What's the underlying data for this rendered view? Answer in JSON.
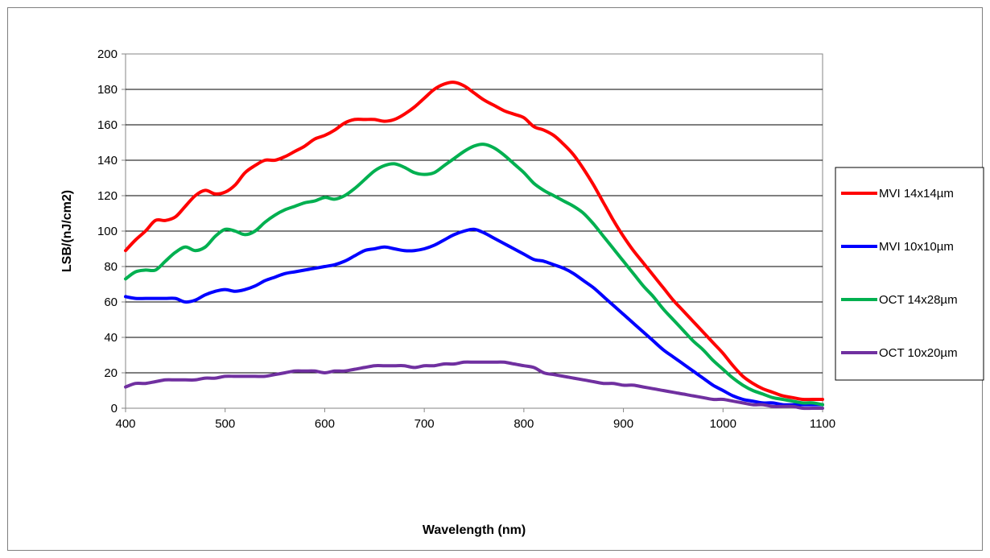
{
  "chart_data": {
    "type": "line",
    "title": "",
    "xlabel": "Wavelength (nm)",
    "ylabel": "LSB/(nJ/cm2)",
    "xlim": [
      400,
      1100
    ],
    "ylim": [
      0,
      200
    ],
    "x_ticks": [
      "400",
      "500",
      "600",
      "700",
      "800",
      "900",
      "1000",
      "1100"
    ],
    "y_ticks": [
      "0",
      "20",
      "40",
      "60",
      "80",
      "100",
      "120",
      "140",
      "160",
      "180",
      "200"
    ],
    "grid": "horizontal",
    "legend_position": "right",
    "series": [
      {
        "name": "MVI 14x14µm",
        "color": "#ff0000",
        "points": [
          [
            400,
            89
          ],
          [
            410,
            95
          ],
          [
            420,
            100
          ],
          [
            430,
            106
          ],
          [
            440,
            106
          ],
          [
            450,
            108
          ],
          [
            460,
            114
          ],
          [
            470,
            120
          ],
          [
            480,
            123
          ],
          [
            490,
            121
          ],
          [
            500,
            122
          ],
          [
            510,
            126
          ],
          [
            520,
            133
          ],
          [
            530,
            137
          ],
          [
            540,
            140
          ],
          [
            550,
            140
          ],
          [
            560,
            142
          ],
          [
            570,
            145
          ],
          [
            580,
            148
          ],
          [
            590,
            152
          ],
          [
            600,
            154
          ],
          [
            610,
            157
          ],
          [
            620,
            161
          ],
          [
            630,
            163
          ],
          [
            640,
            163
          ],
          [
            650,
            163
          ],
          [
            660,
            162
          ],
          [
            670,
            163
          ],
          [
            680,
            166
          ],
          [
            690,
            170
          ],
          [
            700,
            175
          ],
          [
            710,
            180
          ],
          [
            720,
            183
          ],
          [
            730,
            184
          ],
          [
            740,
            182
          ],
          [
            750,
            178
          ],
          [
            760,
            174
          ],
          [
            770,
            171
          ],
          [
            780,
            168
          ],
          [
            790,
            166
          ],
          [
            800,
            164
          ],
          [
            810,
            159
          ],
          [
            820,
            157
          ],
          [
            830,
            154
          ],
          [
            840,
            149
          ],
          [
            850,
            143
          ],
          [
            860,
            135
          ],
          [
            870,
            126
          ],
          [
            880,
            116
          ],
          [
            890,
            106
          ],
          [
            900,
            97
          ],
          [
            910,
            89
          ],
          [
            920,
            82
          ],
          [
            930,
            75
          ],
          [
            940,
            68
          ],
          [
            950,
            61
          ],
          [
            960,
            55
          ],
          [
            970,
            49
          ],
          [
            980,
            43
          ],
          [
            990,
            37
          ],
          [
            1000,
            31
          ],
          [
            1010,
            24
          ],
          [
            1020,
            18
          ],
          [
            1030,
            14
          ],
          [
            1040,
            11
          ],
          [
            1050,
            9
          ],
          [
            1060,
            7
          ],
          [
            1070,
            6
          ],
          [
            1080,
            5
          ],
          [
            1090,
            5
          ],
          [
            1100,
            5
          ]
        ]
      },
      {
        "name": "MVI 10x10µm",
        "color": "#0000ff",
        "points": [
          [
            400,
            63
          ],
          [
            410,
            62
          ],
          [
            420,
            62
          ],
          [
            430,
            62
          ],
          [
            440,
            62
          ],
          [
            450,
            62
          ],
          [
            460,
            60
          ],
          [
            470,
            61
          ],
          [
            480,
            64
          ],
          [
            490,
            66
          ],
          [
            500,
            67
          ],
          [
            510,
            66
          ],
          [
            520,
            67
          ],
          [
            530,
            69
          ],
          [
            540,
            72
          ],
          [
            550,
            74
          ],
          [
            560,
            76
          ],
          [
            570,
            77
          ],
          [
            580,
            78
          ],
          [
            590,
            79
          ],
          [
            600,
            80
          ],
          [
            610,
            81
          ],
          [
            620,
            83
          ],
          [
            630,
            86
          ],
          [
            640,
            89
          ],
          [
            650,
            90
          ],
          [
            660,
            91
          ],
          [
            670,
            90
          ],
          [
            680,
            89
          ],
          [
            690,
            89
          ],
          [
            700,
            90
          ],
          [
            710,
            92
          ],
          [
            720,
            95
          ],
          [
            730,
            98
          ],
          [
            740,
            100
          ],
          [
            750,
            101
          ],
          [
            760,
            99
          ],
          [
            770,
            96
          ],
          [
            780,
            93
          ],
          [
            790,
            90
          ],
          [
            800,
            87
          ],
          [
            810,
            84
          ],
          [
            820,
            83
          ],
          [
            830,
            81
          ],
          [
            840,
            79
          ],
          [
            850,
            76
          ],
          [
            860,
            72
          ],
          [
            870,
            68
          ],
          [
            880,
            63
          ],
          [
            890,
            58
          ],
          [
            900,
            53
          ],
          [
            910,
            48
          ],
          [
            920,
            43
          ],
          [
            930,
            38
          ],
          [
            940,
            33
          ],
          [
            950,
            29
          ],
          [
            960,
            25
          ],
          [
            970,
            21
          ],
          [
            980,
            17
          ],
          [
            990,
            13
          ],
          [
            1000,
            10
          ],
          [
            1010,
            7
          ],
          [
            1020,
            5
          ],
          [
            1030,
            4
          ],
          [
            1040,
            3
          ],
          [
            1050,
            3
          ],
          [
            1060,
            2
          ],
          [
            1070,
            2
          ],
          [
            1080,
            2
          ],
          [
            1090,
            2
          ],
          [
            1100,
            2
          ]
        ]
      },
      {
        "name": "OCT 14x28µm",
        "color": "#00b050",
        "points": [
          [
            400,
            73
          ],
          [
            410,
            77
          ],
          [
            420,
            78
          ],
          [
            430,
            78
          ],
          [
            440,
            83
          ],
          [
            450,
            88
          ],
          [
            460,
            91
          ],
          [
            470,
            89
          ],
          [
            480,
            91
          ],
          [
            490,
            97
          ],
          [
            500,
            101
          ],
          [
            510,
            100
          ],
          [
            520,
            98
          ],
          [
            530,
            100
          ],
          [
            540,
            105
          ],
          [
            550,
            109
          ],
          [
            560,
            112
          ],
          [
            570,
            114
          ],
          [
            580,
            116
          ],
          [
            590,
            117
          ],
          [
            600,
            119
          ],
          [
            610,
            118
          ],
          [
            620,
            120
          ],
          [
            630,
            124
          ],
          [
            640,
            129
          ],
          [
            650,
            134
          ],
          [
            660,
            137
          ],
          [
            670,
            138
          ],
          [
            680,
            136
          ],
          [
            690,
            133
          ],
          [
            700,
            132
          ],
          [
            710,
            133
          ],
          [
            720,
            137
          ],
          [
            730,
            141
          ],
          [
            740,
            145
          ],
          [
            750,
            148
          ],
          [
            760,
            149
          ],
          [
            770,
            147
          ],
          [
            780,
            143
          ],
          [
            790,
            138
          ],
          [
            800,
            133
          ],
          [
            810,
            127
          ],
          [
            820,
            123
          ],
          [
            830,
            120
          ],
          [
            840,
            117
          ],
          [
            850,
            114
          ],
          [
            860,
            110
          ],
          [
            870,
            104
          ],
          [
            880,
            97
          ],
          [
            890,
            90
          ],
          [
            900,
            83
          ],
          [
            910,
            76
          ],
          [
            920,
            69
          ],
          [
            930,
            63
          ],
          [
            940,
            56
          ],
          [
            950,
            50
          ],
          [
            960,
            44
          ],
          [
            970,
            38
          ],
          [
            980,
            33
          ],
          [
            990,
            27
          ],
          [
            1000,
            22
          ],
          [
            1010,
            17
          ],
          [
            1020,
            13
          ],
          [
            1030,
            10
          ],
          [
            1040,
            8
          ],
          [
            1050,
            6
          ],
          [
            1060,
            5
          ],
          [
            1070,
            4
          ],
          [
            1080,
            3
          ],
          [
            1090,
            3
          ],
          [
            1100,
            2
          ]
        ]
      },
      {
        "name": "OCT 10x20µm",
        "color": "#7030a0",
        "points": [
          [
            400,
            12
          ],
          [
            410,
            14
          ],
          [
            420,
            14
          ],
          [
            430,
            15
          ],
          [
            440,
            16
          ],
          [
            450,
            16
          ],
          [
            460,
            16
          ],
          [
            470,
            16
          ],
          [
            480,
            17
          ],
          [
            490,
            17
          ],
          [
            500,
            18
          ],
          [
            510,
            18
          ],
          [
            520,
            18
          ],
          [
            530,
            18
          ],
          [
            540,
            18
          ],
          [
            550,
            19
          ],
          [
            560,
            20
          ],
          [
            570,
            21
          ],
          [
            580,
            21
          ],
          [
            590,
            21
          ],
          [
            600,
            20
          ],
          [
            610,
            21
          ],
          [
            620,
            21
          ],
          [
            630,
            22
          ],
          [
            640,
            23
          ],
          [
            650,
            24
          ],
          [
            660,
            24
          ],
          [
            670,
            24
          ],
          [
            680,
            24
          ],
          [
            690,
            23
          ],
          [
            700,
            24
          ],
          [
            710,
            24
          ],
          [
            720,
            25
          ],
          [
            730,
            25
          ],
          [
            740,
            26
          ],
          [
            750,
            26
          ],
          [
            760,
            26
          ],
          [
            770,
            26
          ],
          [
            780,
            26
          ],
          [
            790,
            25
          ],
          [
            800,
            24
          ],
          [
            810,
            23
          ],
          [
            820,
            20
          ],
          [
            830,
            19
          ],
          [
            840,
            18
          ],
          [
            850,
            17
          ],
          [
            860,
            16
          ],
          [
            870,
            15
          ],
          [
            880,
            14
          ],
          [
            890,
            14
          ],
          [
            900,
            13
          ],
          [
            910,
            13
          ],
          [
            920,
            12
          ],
          [
            930,
            11
          ],
          [
            940,
            10
          ],
          [
            950,
            9
          ],
          [
            960,
            8
          ],
          [
            970,
            7
          ],
          [
            980,
            6
          ],
          [
            990,
            5
          ],
          [
            1000,
            5
          ],
          [
            1010,
            4
          ],
          [
            1020,
            3
          ],
          [
            1030,
            2
          ],
          [
            1040,
            2
          ],
          [
            1050,
            1
          ],
          [
            1060,
            1
          ],
          [
            1070,
            1
          ],
          [
            1080,
            0
          ],
          [
            1090,
            0
          ],
          [
            1100,
            0
          ]
        ]
      }
    ]
  }
}
